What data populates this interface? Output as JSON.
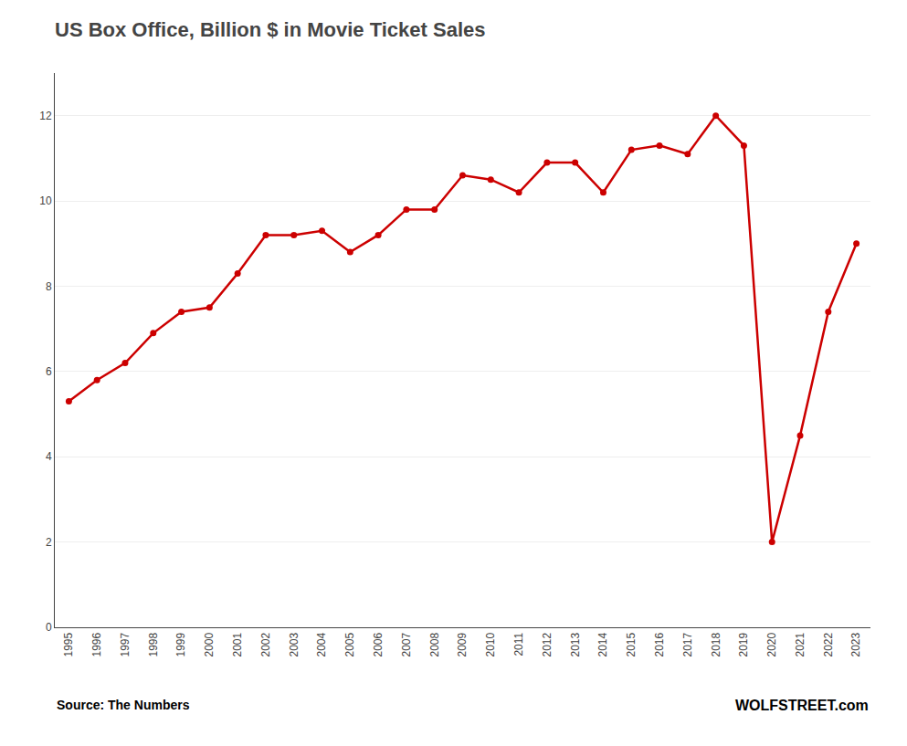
{
  "chart_data": {
    "type": "line",
    "title": "US Box Office, Billion $ in Movie Ticket Sales",
    "x": [
      1995,
      1996,
      1997,
      1998,
      1999,
      2000,
      2001,
      2002,
      2003,
      2004,
      2005,
      2006,
      2007,
      2008,
      2009,
      2010,
      2011,
      2012,
      2013,
      2014,
      2015,
      2016,
      2017,
      2018,
      2019,
      2020,
      2021,
      2022,
      2023
    ],
    "values": [
      5.3,
      5.8,
      6.2,
      6.9,
      7.4,
      7.5,
      8.3,
      9.2,
      9.2,
      9.3,
      8.8,
      9.2,
      9.8,
      9.8,
      10.6,
      10.5,
      10.2,
      10.9,
      10.9,
      10.2,
      11.2,
      11.3,
      11.1,
      12.0,
      11.3,
      2.0,
      4.5,
      7.4,
      9.0
    ],
    "color": "#cc0000",
    "marker": "circle",
    "xlim": [
      1994.5,
      2023.5
    ],
    "xticks": [
      1995,
      1996,
      1997,
      1998,
      1999,
      2000,
      2001,
      2002,
      2003,
      2004,
      2005,
      2006,
      2007,
      2008,
      2009,
      2010,
      2011,
      2012,
      2013,
      2014,
      2015,
      2016,
      2017,
      2018,
      2019,
      2020,
      2021,
      2022,
      2023
    ],
    "ylim": [
      0,
      13
    ],
    "yticks": [
      0,
      2,
      4,
      6,
      8,
      10,
      12
    ],
    "grid": true,
    "annotations": [
      "Source: The Numbers",
      "WOLFSTREET.com"
    ]
  }
}
